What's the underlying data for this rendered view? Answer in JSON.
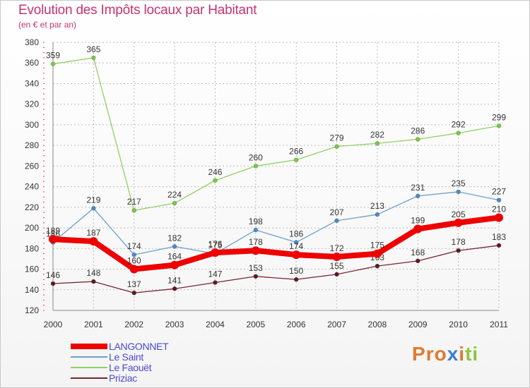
{
  "title": "Evolution des Impôts locaux par Habitant",
  "subtitle": "(en € et par an)",
  "brand": {
    "letters": [
      "P",
      "r",
      "o",
      "x",
      "i",
      "t",
      "i"
    ]
  },
  "colors": {
    "title": "#c8336e",
    "grid": "#bdbdbd",
    "axis_text": "#333333",
    "brand": [
      "#e07a2e",
      "#e07a2e",
      "#e07a2e",
      "#3a7fd6",
      "#e07a2e",
      "#8cc63f",
      "#8cc63f"
    ]
  },
  "chart_data": {
    "type": "line",
    "title": "Evolution des Impôts locaux par Habitant",
    "subtitle": "(en € et par an)",
    "xlabel": "",
    "ylabel": "",
    "categories": [
      "2000",
      "2001",
      "2002",
      "2003",
      "2004",
      "2005",
      "2006",
      "2007",
      "2008",
      "2009",
      "2010",
      "2011"
    ],
    "ylim": [
      120,
      380
    ],
    "yticks": [
      120,
      140,
      160,
      180,
      200,
      220,
      240,
      260,
      280,
      300,
      320,
      340,
      360,
      380
    ],
    "grid": true,
    "legend": "bottom-left",
    "series": [
      {
        "name": "Le Faouët",
        "color": "#8fd163",
        "marker": "#7cc64a",
        "width": 1.3,
        "values": [
          359,
          365,
          217,
          224,
          246,
          260,
          266,
          279,
          282,
          286,
          292,
          299
        ]
      },
      {
        "name": "Le Saint",
        "color": "#6d9fca",
        "marker": "#4f8ac2",
        "width": 1.3,
        "values": [
          186,
          219,
          174,
          182,
          175,
          198,
          186,
          207,
          213,
          231,
          235,
          227
        ]
      },
      {
        "name": "Priziac",
        "color": "#7a2430",
        "marker": "#5e1a22",
        "width": 1.3,
        "values": [
          146,
          148,
          137,
          141,
          147,
          153,
          150,
          155,
          163,
          168,
          178,
          183
        ]
      },
      {
        "name": "LANGONNET",
        "color": "#ee0000",
        "marker": "#ee0000",
        "width": 8,
        "values": [
          189,
          187,
          160,
          164,
          176,
          178,
          174,
          172,
          175,
          199,
          205,
          210
        ]
      }
    ],
    "legend_order": [
      "LANGONNET",
      "Le Saint",
      "Le Faouët",
      "Priziac"
    ]
  }
}
